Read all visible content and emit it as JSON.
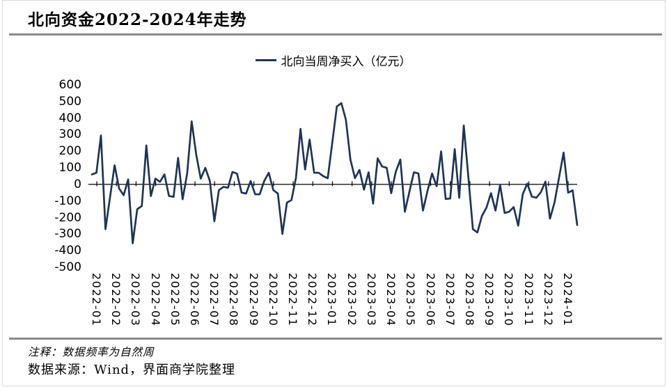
{
  "header": {
    "title": "北向资金2022-2024年走势"
  },
  "legend": {
    "label": "北向当周净买入（亿元）"
  },
  "footer": {
    "note": "注释：数据频率为自然周",
    "source": "数据来源：Wind，界面商学院整理"
  },
  "colors": {
    "line": "#1f3456",
    "axis": "#000000",
    "rule": "#8a8a8a",
    "border": "#d9d9d9"
  },
  "chart_data": {
    "type": "line",
    "title": "北向资金2022-2024年走势",
    "xlabel": "",
    "ylabel": "",
    "ylim": [
      -500,
      600
    ],
    "y_ticks": [
      600,
      500,
      400,
      300,
      200,
      100,
      0,
      -100,
      -200,
      -300,
      -400,
      -500
    ],
    "grid": false,
    "legend_position": "top-center",
    "x_unit": "week",
    "x_label_rotation": 90,
    "x_tick_labels": [
      "2022-01",
      "2022-02",
      "2022-03",
      "2022-04",
      "2022-05",
      "2022-06",
      "2022-07",
      "2022-08",
      "2022-09",
      "2022-10",
      "2022-11",
      "2022-12",
      "2023-01",
      "2023-02",
      "2023-03",
      "2023-04",
      "2023-05",
      "2023-06",
      "2023-07",
      "2023-08",
      "2023-09",
      "2023-10",
      "2023-11",
      "2023-12",
      "2024-01"
    ],
    "series": [
      {
        "name": "北向当周净买入（亿元）",
        "values": [
          60,
          70,
          295,
          -270,
          -75,
          115,
          -25,
          -65,
          30,
          -355,
          -150,
          -130,
          235,
          -70,
          35,
          15,
          60,
          -70,
          -75,
          160,
          -90,
          65,
          380,
          180,
          35,
          100,
          20,
          -222,
          -35,
          -15,
          -20,
          75,
          65,
          -50,
          -55,
          20,
          -60,
          -60,
          20,
          70,
          -35,
          -55,
          -299,
          -110,
          -95,
          40,
          335,
          90,
          270,
          70,
          70,
          50,
          37,
          250,
          470,
          490,
          390,
          150,
          38,
          87,
          -32,
          73,
          -116,
          157,
          108,
          100,
          -53,
          75,
          150,
          -165,
          -45,
          73,
          66,
          -158,
          -40,
          66,
          -11,
          199,
          -88,
          -85,
          213,
          -81,
          355,
          45,
          -270,
          -290,
          -190,
          -140,
          -53,
          -158,
          -4,
          -172,
          -165,
          -137,
          -249,
          -60,
          5,
          -74,
          -81,
          -46,
          17,
          -207,
          -110,
          40,
          192,
          -50,
          -36,
          -245
        ]
      }
    ]
  }
}
